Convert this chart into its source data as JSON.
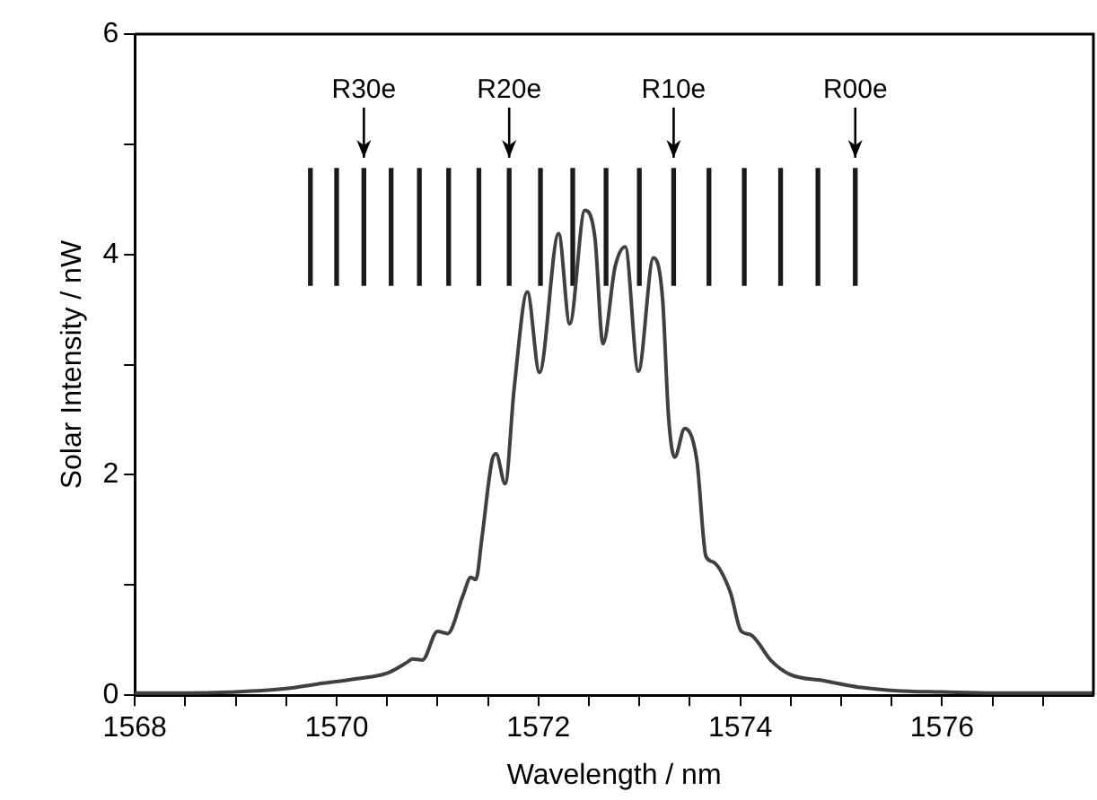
{
  "chart_data": {
    "type": "line",
    "xlabel": "Wavelength / nm",
    "ylabel": "Solar Intensity / nW",
    "xlim": [
      1568,
      1577.5
    ],
    "xticks": [
      1568,
      {
        "value": 1568.5,
        "label": null
      },
      {
        "value": 1569,
        "label": null
      },
      {
        "value": 1569.5,
        "label": null
      },
      1570,
      {
        "value": 1570.5,
        "label": null
      },
      {
        "value": 1571,
        "label": null
      },
      {
        "value": 1571.5,
        "label": null
      },
      1572,
      {
        "value": 1572.5,
        "label": null
      },
      {
        "value": 1573,
        "label": null
      },
      {
        "value": 1573.5,
        "label": null
      },
      1574,
      {
        "value": 1574.5,
        "label": null
      },
      {
        "value": 1575,
        "label": null
      },
      {
        "value": 1575.5,
        "label": null
      },
      1576,
      {
        "value": 1576.5,
        "label": null
      },
      {
        "value": 1577,
        "label": null
      }
    ],
    "ylim": [
      0,
      6
    ],
    "yticks": [
      0,
      {
        "value": 1,
        "label": null
      },
      2,
      {
        "value": 3,
        "label": null
      },
      4,
      {
        "value": 5,
        "label": null
      },
      6
    ],
    "grid": false,
    "legend": false,
    "marker": "none",
    "line_style": "solid",
    "series": [
      {
        "color": "#404040",
        "x": [
          1568,
          1568.5,
          1569,
          1569.5,
          1569.8,
          1570.2,
          1570.5,
          1570.7,
          1570.75,
          1570.85,
          1571.0,
          1571.1,
          1571.25,
          1571.33,
          1571.38,
          1571.44,
          1571.54,
          1571.58,
          1571.67,
          1571.76,
          1571.89,
          1572.01,
          1572.2,
          1572.31,
          1572.46,
          1572.56,
          1572.64,
          1572.76,
          1572.86,
          1572.99,
          1573.14,
          1573.23,
          1573.29,
          1573.35,
          1573.45,
          1573.57,
          1573.66,
          1573.73,
          1573.9,
          1574.01,
          1574.1,
          1574.31,
          1574.49,
          1574.84,
          1575.2,
          1575.56,
          1576,
          1576.5,
          1577,
          1577.5
        ],
        "values": [
          0.02,
          0.02,
          0.03,
          0.06,
          0.1,
          0.15,
          0.2,
          0.3,
          0.33,
          0.32,
          0.58,
          0.56,
          0.9,
          1.07,
          1.05,
          1.43,
          2.13,
          2.19,
          1.92,
          2.79,
          3.66,
          2.93,
          4.19,
          3.37,
          4.4,
          4.15,
          3.19,
          3.89,
          4.07,
          2.94,
          3.97,
          3.6,
          2.52,
          2.16,
          2.42,
          2.13,
          1.26,
          1.21,
          0.94,
          0.58,
          0.55,
          0.31,
          0.19,
          0.13,
          0.07,
          0.04,
          0.03,
          0.02,
          0.02,
          0.02
        ]
      },
      {
        "type": "bar",
        "color": "#1a1a1a",
        "x": [
          1569.74,
          1570.0,
          1570.27,
          1570.54,
          1570.82,
          1571.11,
          1571.41,
          1571.71,
          1572.02,
          1572.34,
          1572.67,
          1573.0,
          1573.34,
          1573.69,
          1574.04,
          1574.4,
          1574.77,
          1575.14
        ],
        "base": [
          3.72,
          3.72,
          3.72,
          3.72,
          3.72,
          3.72,
          3.72,
          3.72,
          3.72,
          3.72,
          3.72,
          3.72,
          3.72,
          3.72,
          3.72,
          3.72,
          3.72,
          3.72
        ],
        "values": [
          1.06,
          1.06,
          1.06,
          1.06,
          1.06,
          1.06,
          1.06,
          1.06,
          1.06,
          1.06,
          1.06,
          1.06,
          1.06,
          1.06,
          1.06,
          1.06,
          1.06,
          1.06
        ]
      }
    ],
    "annotations": [
      {
        "text": "R30e",
        "x": 1570.27,
        "y": 4.78
      },
      {
        "text": "R20e",
        "x": 1571.71,
        "y": 4.78
      },
      {
        "text": "R10e",
        "x": 1573.34,
        "y": 4.78
      },
      {
        "text": "R00e",
        "x": 1575.14,
        "y": 4.78
      }
    ]
  }
}
